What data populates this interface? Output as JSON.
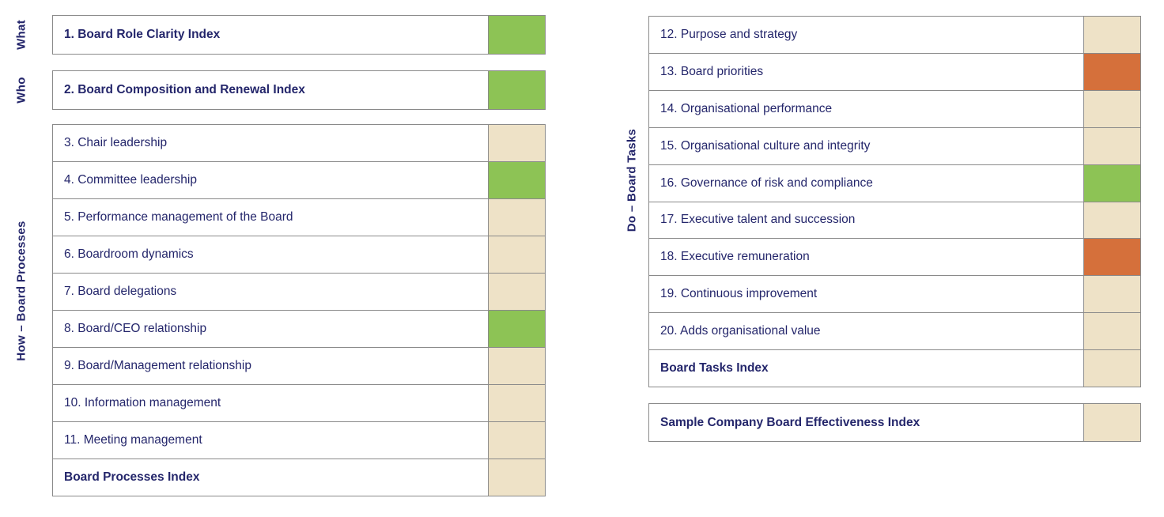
{
  "side_labels": {
    "what": "What",
    "who": "Who",
    "how": "How – Board Processes",
    "do": "Do – Board Tasks"
  },
  "status_colors": {
    "green": "#8dc355",
    "orange": "#d5703b",
    "tan": "#eee2c7"
  },
  "theme": {
    "text_navy": "#24266b",
    "border_gray": "#8a8a8a",
    "background": "#ffffff"
  },
  "tables": {
    "what": {
      "rows": [
        {
          "label": "1. Board Role Clarity Index",
          "bold": true,
          "status": "green"
        }
      ]
    },
    "who": {
      "rows": [
        {
          "label": "2. Board Composition and Renewal Index",
          "bold": true,
          "status": "green"
        }
      ]
    },
    "processes": {
      "rows": [
        {
          "label": "3. Chair leadership",
          "bold": false,
          "status": "tan"
        },
        {
          "label": "4. Committee leadership",
          "bold": false,
          "status": "green"
        },
        {
          "label": "5. Performance management of the Board",
          "bold": false,
          "status": "tan"
        },
        {
          "label": "6. Boardroom dynamics",
          "bold": false,
          "status": "tan"
        },
        {
          "label": "7. Board delegations",
          "bold": false,
          "status": "tan"
        },
        {
          "label": "8. Board/CEO relationship",
          "bold": false,
          "status": "green"
        },
        {
          "label": "9. Board/Management relationship",
          "bold": false,
          "status": "tan"
        },
        {
          "label": "10. Information management",
          "bold": false,
          "status": "tan"
        },
        {
          "label": "11. Meeting management",
          "bold": false,
          "status": "tan"
        },
        {
          "label": "Board Processes Index",
          "bold": true,
          "status": "tan"
        }
      ]
    },
    "tasks": {
      "rows": [
        {
          "label": "12. Purpose and strategy",
          "bold": false,
          "status": "tan"
        },
        {
          "label": "13. Board priorities",
          "bold": false,
          "status": "orange"
        },
        {
          "label": "14. Organisational performance",
          "bold": false,
          "status": "tan"
        },
        {
          "label": "15. Organisational culture and integrity",
          "bold": false,
          "status": "tan"
        },
        {
          "label": "16. Governance of risk and compliance",
          "bold": false,
          "status": "green"
        },
        {
          "label": "17. Executive talent and succession",
          "bold": false,
          "status": "tan"
        },
        {
          "label": "18. Executive remuneration",
          "bold": false,
          "status": "orange"
        },
        {
          "label": "19. Continuous improvement",
          "bold": false,
          "status": "tan"
        },
        {
          "label": "20. Adds organisational value",
          "bold": false,
          "status": "tan"
        },
        {
          "label": "Board Tasks Index",
          "bold": true,
          "status": "tan"
        }
      ]
    },
    "overall": {
      "rows": [
        {
          "label": "Sample Company Board Effectiveness Index",
          "bold": true,
          "status": "tan"
        }
      ]
    }
  }
}
